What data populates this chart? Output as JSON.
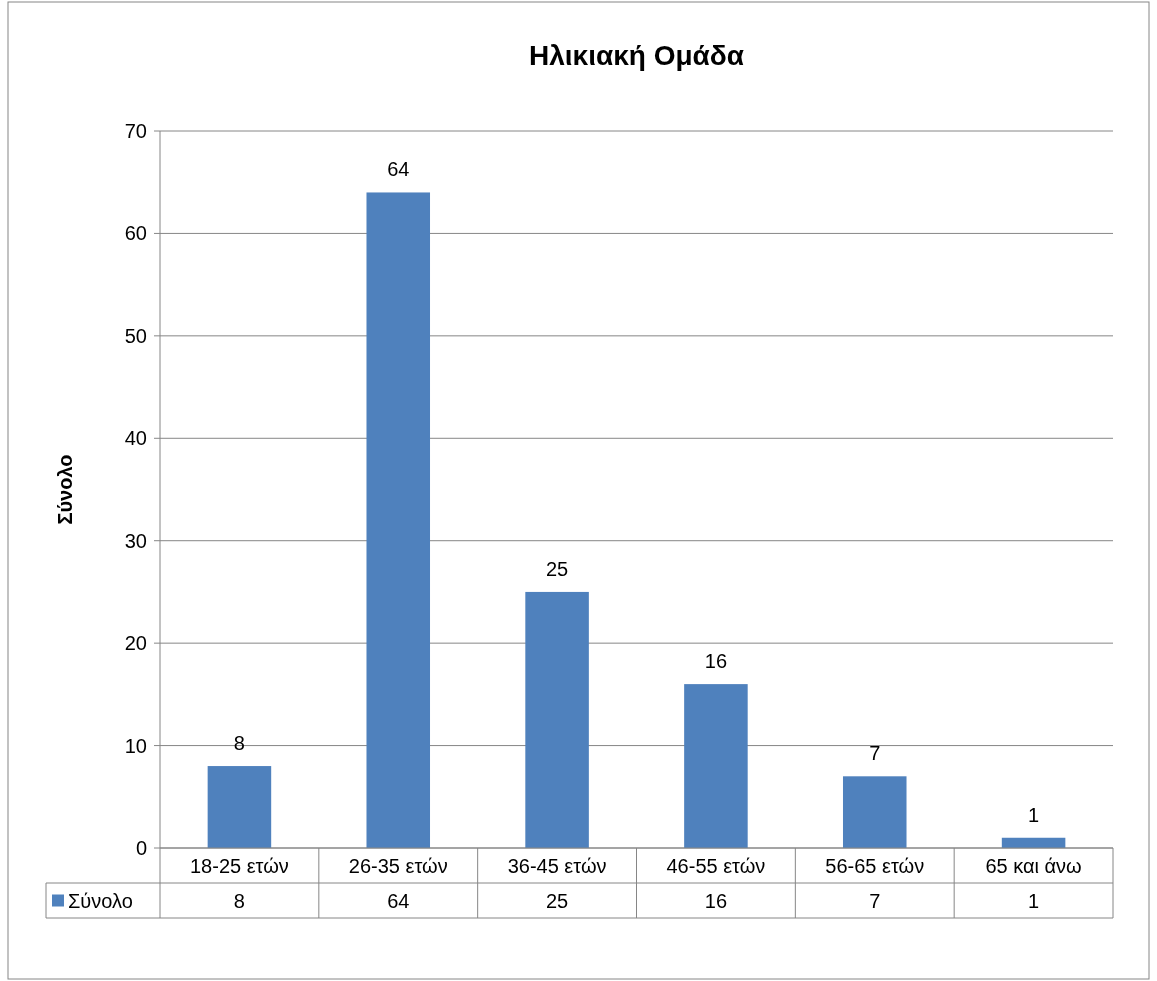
{
  "chart_data": {
    "type": "bar",
    "title": "Ηλικιακή Ομάδα",
    "ylabel": "Σύνολο",
    "categories": [
      "18-25 ετών",
      "26-35 ετών",
      "36-45 ετών",
      "46-55 ετών",
      "56-65 ετών",
      "65 και άνω"
    ],
    "series": [
      {
        "name": "Σύνολο",
        "color": "#4f81bd",
        "values": [
          8,
          64,
          25,
          16,
          7,
          1
        ]
      }
    ],
    "annotations": [
      "8",
      "64",
      "25",
      "16",
      "7",
      "1"
    ],
    "ylim": [
      0,
      70
    ],
    "yticks": [
      0,
      10,
      20,
      30,
      40,
      50,
      60,
      70
    ],
    "grid": "y",
    "data_labels": true,
    "legend": "bottom left"
  }
}
